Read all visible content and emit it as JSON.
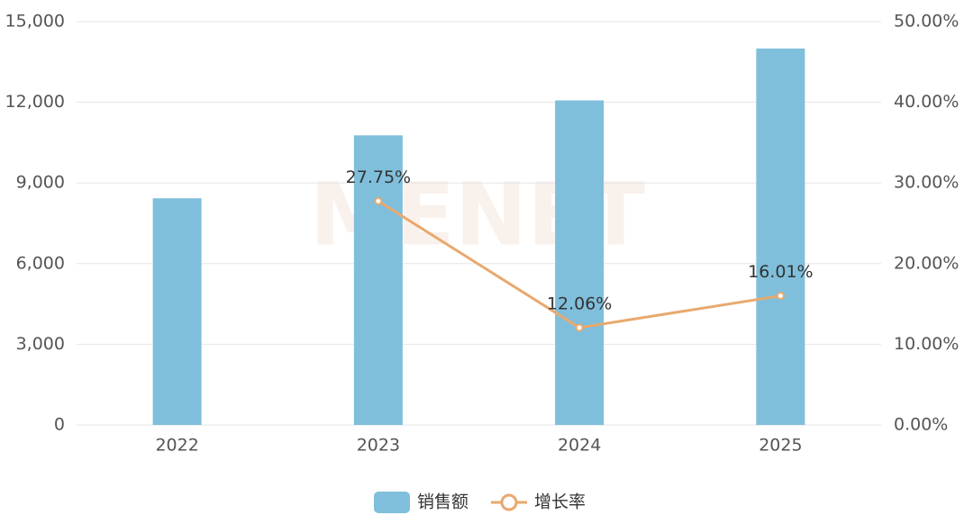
{
  "chart_data": {
    "type": "bar-line",
    "watermark": "MENET",
    "categories": [
      "2022",
      "2023",
      "2024",
      "2025"
    ],
    "series": [
      {
        "name": "销售额",
        "type": "bar",
        "color": "#7fbfdc",
        "values": [
          8430,
          10770,
          12070,
          14000
        ]
      },
      {
        "name": "增长率",
        "type": "line",
        "axis": "y2",
        "color": "#e8a96e",
        "values": [
          null,
          27.75,
          12.06,
          16.01
        ],
        "value_labels": [
          null,
          "27.75%",
          "12.06%",
          "16.01%"
        ]
      }
    ],
    "ylim": [
      0,
      15000
    ],
    "yticks": [
      0,
      {
        "value": 3000,
        "label": "3,000"
      },
      {
        "value": 6000,
        "label": "6,000"
      },
      {
        "value": 9000,
        "label": "9,000"
      },
      {
        "value": 12000,
        "label": "12,000"
      },
      {
        "value": 15000,
        "label": "15,000"
      }
    ],
    "y2lim": [
      0,
      50
    ],
    "y2ticks": [
      {
        "value": 0,
        "label": "0.00%"
      },
      {
        "value": 10,
        "label": "10.00%"
      },
      {
        "value": 20,
        "label": "20.00%"
      },
      {
        "value": 30,
        "label": "30.00%"
      },
      {
        "value": 40,
        "label": "40.00%"
      },
      {
        "value": 50,
        "label": "50.00%"
      }
    ],
    "grid": true,
    "legend": "bottom"
  }
}
